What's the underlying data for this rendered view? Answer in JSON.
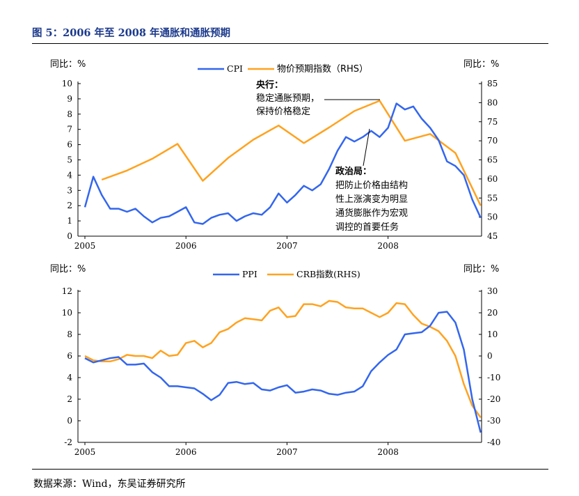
{
  "figure_title": "图 5：2006 年至 2008 年通胀和通胀预期",
  "source": "数据来源：Wind，东吴证券研究所",
  "colors": {
    "blue": "#3366ee",
    "orange": "#ffa21f",
    "axis": "#000000"
  },
  "chart_data": [
    {
      "type": "line",
      "name": "cpi-chart",
      "x_ticks": [
        "2005",
        "2006",
        "2007",
        "2008"
      ],
      "left_unit_label": "同比：%",
      "right_unit_label": "同比：%",
      "left_ylim": [
        0,
        10
      ],
      "left_ticks": [
        "0",
        "1",
        "2",
        "3",
        "4",
        "5",
        "6",
        "7",
        "8",
        "9",
        "10"
      ],
      "right_ylim": [
        45,
        85
      ],
      "right_ticks": [
        "45",
        "50",
        "55",
        "60",
        "65",
        "70",
        "75",
        "80",
        "85"
      ],
      "series": [
        {
          "name": "CPI",
          "axis": "left",
          "color": "#3366ee",
          "x": [
            2005.0,
            2005.083,
            2005.167,
            2005.25,
            2005.333,
            2005.417,
            2005.5,
            2005.583,
            2005.667,
            2005.75,
            2005.833,
            2005.917,
            2006.0,
            2006.083,
            2006.167,
            2006.25,
            2006.333,
            2006.417,
            2006.5,
            2006.583,
            2006.667,
            2006.75,
            2006.833,
            2006.917,
            2007.0,
            2007.083,
            2007.167,
            2007.25,
            2007.333,
            2007.417,
            2007.5,
            2007.583,
            2007.667,
            2007.75,
            2007.833,
            2007.917,
            2008.0,
            2008.083,
            2008.167,
            2008.25,
            2008.333,
            2008.417,
            2008.5,
            2008.583,
            2008.667,
            2008.75,
            2008.833,
            2008.917
          ],
          "values": [
            1.9,
            3.9,
            2.7,
            1.8,
            1.8,
            1.6,
            1.8,
            1.3,
            0.9,
            1.2,
            1.3,
            1.6,
            1.9,
            0.9,
            0.8,
            1.2,
            1.4,
            1.5,
            1.0,
            1.3,
            1.5,
            1.4,
            1.9,
            2.8,
            2.2,
            2.7,
            3.3,
            3.0,
            3.4,
            4.4,
            5.6,
            6.5,
            6.2,
            6.5,
            6.9,
            6.5,
            7.1,
            8.7,
            8.3,
            8.5,
            7.7,
            7.1,
            6.3,
            4.9,
            4.6,
            4.0,
            2.4,
            1.2
          ]
        },
        {
          "name": "物价预期指数（RHS）",
          "axis": "right",
          "color": "#ffa21f",
          "x": [
            2005.167,
            2005.417,
            2005.667,
            2005.917,
            2006.167,
            2006.417,
            2006.667,
            2006.917,
            2007.167,
            2007.417,
            2007.667,
            2007.917,
            2008.167,
            2008.417,
            2008.667,
            2008.917
          ],
          "values": [
            59.8,
            62.2,
            65.3,
            69.2,
            59.5,
            65.5,
            70.3,
            74.0,
            69.4,
            73.5,
            77.8,
            80.5,
            70.0,
            71.8,
            66.8,
            53.0
          ]
        }
      ],
      "annotations": [
        {
          "title": "央行：",
          "lines": [
            "稳定通胀预期，",
            "保持价格稳定"
          ]
        },
        {
          "title": "政治局：",
          "lines": [
            "把防止价格由结构",
            "性上涨演变为明显",
            "通货膨胀作为宏观",
            "调控的首要任务"
          ]
        }
      ]
    },
    {
      "type": "line",
      "name": "ppi-chart",
      "x_ticks": [
        "2005",
        "2006",
        "2007",
        "2008"
      ],
      "left_unit_label": "同比：%",
      "right_unit_label": "同比：%",
      "left_ylim": [
        -2,
        12
      ],
      "left_ticks": [
        "-2",
        "0",
        "2",
        "4",
        "6",
        "8",
        "10",
        "12"
      ],
      "right_ylim": [
        -40,
        30
      ],
      "right_ticks": [
        "-40",
        "-30",
        "-20",
        "-10",
        "0",
        "10",
        "20",
        "30"
      ],
      "series": [
        {
          "name": "PPI",
          "axis": "left",
          "color": "#3366ee",
          "x": [
            2005.0,
            2005.083,
            2005.167,
            2005.25,
            2005.333,
            2005.417,
            2005.5,
            2005.583,
            2005.667,
            2005.75,
            2005.833,
            2005.917,
            2006.0,
            2006.083,
            2006.167,
            2006.25,
            2006.333,
            2006.417,
            2006.5,
            2006.583,
            2006.667,
            2006.75,
            2006.833,
            2006.917,
            2007.0,
            2007.083,
            2007.167,
            2007.25,
            2007.333,
            2007.417,
            2007.5,
            2007.583,
            2007.667,
            2007.75,
            2007.833,
            2007.917,
            2008.0,
            2008.083,
            2008.167,
            2008.25,
            2008.333,
            2008.417,
            2008.5,
            2008.583,
            2008.667,
            2008.75,
            2008.833,
            2008.917
          ],
          "values": [
            5.8,
            5.4,
            5.6,
            5.8,
            5.9,
            5.2,
            5.2,
            5.3,
            4.5,
            4.0,
            3.2,
            3.2,
            3.1,
            3.0,
            2.5,
            1.9,
            2.4,
            3.5,
            3.6,
            3.4,
            3.5,
            2.9,
            2.8,
            3.1,
            3.3,
            2.6,
            2.7,
            2.9,
            2.8,
            2.5,
            2.4,
            2.6,
            2.7,
            3.2,
            4.6,
            5.4,
            6.1,
            6.6,
            8.0,
            8.1,
            8.2,
            8.8,
            10.0,
            10.1,
            9.1,
            6.6,
            2.0,
            -1.1
          ]
        },
        {
          "name": "CRB指数(RHS)",
          "axis": "right",
          "color": "#ffa21f",
          "x": [
            2005.0,
            2005.083,
            2005.167,
            2005.25,
            2005.333,
            2005.417,
            2005.5,
            2005.583,
            2005.667,
            2005.75,
            2005.833,
            2005.917,
            2006.0,
            2006.083,
            2006.167,
            2006.25,
            2006.333,
            2006.417,
            2006.5,
            2006.583,
            2006.667,
            2006.75,
            2006.833,
            2006.917,
            2007.0,
            2007.083,
            2007.167,
            2007.25,
            2007.333,
            2007.417,
            2007.5,
            2007.583,
            2007.667,
            2007.75,
            2007.833,
            2007.917,
            2008.0,
            2008.083,
            2008.167,
            2008.25,
            2008.333,
            2008.417,
            2008.5,
            2008.583,
            2008.667,
            2008.75,
            2008.833,
            2008.917
          ],
          "values": [
            0.0,
            -2.0,
            -2.5,
            -2.5,
            -1.5,
            0.5,
            0.0,
            0.0,
            -1.0,
            2.5,
            0.0,
            0.5,
            6.0,
            7.0,
            4.0,
            6.0,
            11.0,
            12.5,
            15.5,
            17.5,
            17.0,
            16.5,
            21.0,
            22.5,
            18.0,
            18.5,
            24.0,
            24.0,
            23.0,
            25.5,
            25.0,
            22.5,
            22.0,
            22.0,
            20.0,
            18.0,
            20.0,
            24.5,
            24.0,
            19.0,
            15.0,
            13.5,
            11.5,
            7.0,
            0.0,
            -13.0,
            -23.0,
            -28.5
          ]
        }
      ]
    }
  ]
}
